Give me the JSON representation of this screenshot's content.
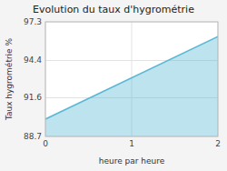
{
  "chart_data": {
    "type": "area",
    "title": "Evolution du taux d'hygrométrie",
    "x_label": "heure par heure",
    "y_label": "Taux hygrométrie %",
    "x": [
      0,
      2
    ],
    "values": [
      90.0,
      96.2
    ],
    "color": "#5bb8d4",
    "xlim": [
      0,
      2
    ],
    "ylim": [
      88.7,
      97.3
    ],
    "xticks": [
      0,
      1,
      2
    ],
    "yticks": [
      88.7,
      91.6,
      94.4,
      97.3
    ],
    "grid": true
  }
}
